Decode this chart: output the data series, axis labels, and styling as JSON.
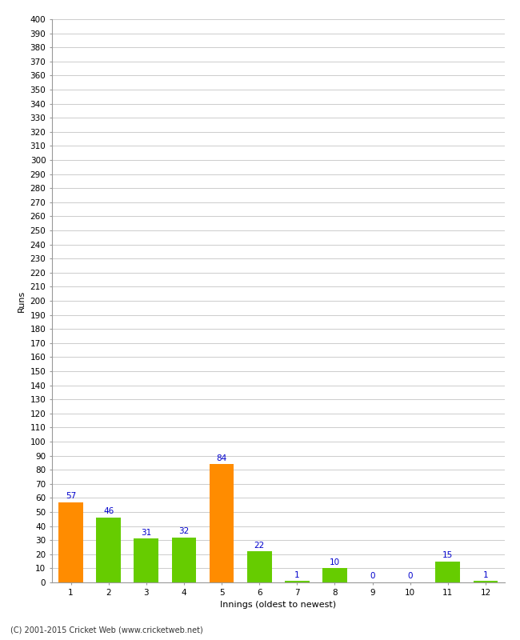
{
  "innings": [
    1,
    2,
    3,
    4,
    5,
    6,
    7,
    8,
    9,
    10,
    11,
    12
  ],
  "values": [
    57,
    46,
    31,
    32,
    84,
    22,
    1,
    10,
    0,
    0,
    15,
    1
  ],
  "bar_colors": [
    "#ff8c00",
    "#66cc00",
    "#66cc00",
    "#66cc00",
    "#ff8c00",
    "#66cc00",
    "#66cc00",
    "#66cc00",
    "#66cc00",
    "#66cc00",
    "#66cc00",
    "#66cc00"
  ],
  "xlabel": "Innings (oldest to newest)",
  "ylabel": "Runs",
  "ylim": [
    0,
    400
  ],
  "ytick_step": 10,
  "background_color": "#ffffff",
  "grid_color": "#cccccc",
  "label_color": "#0000cc",
  "label_fontsize": 7.5,
  "axis_fontsize": 8,
  "tick_fontsize": 7.5,
  "footer": "(C) 2001-2015 Cricket Web (www.cricketweb.net)"
}
